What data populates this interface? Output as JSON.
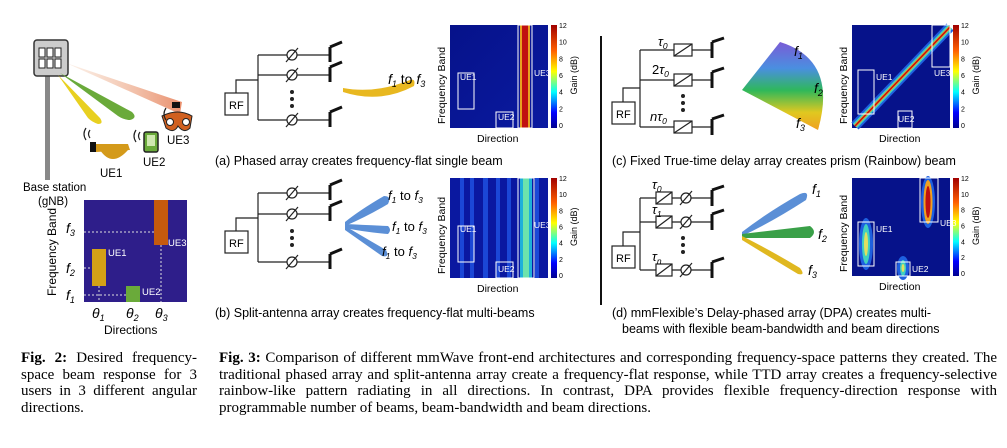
{
  "fig2": {
    "base_station": "Base station",
    "gnb": "(gNB)",
    "ue1": "UE1",
    "ue2": "UE2",
    "ue3": "UE3",
    "ylabel": "Frequency Band",
    "xlabel": "Directions",
    "f1": "f1",
    "f2": "f2",
    "f3": "f3",
    "t1": "θ1",
    "t2": "θ2",
    "t3": "θ3",
    "caption_label": "Fig.  2:",
    "caption_text": "Desired frequency-space beam response for 3 users in 3 different angular directions."
  },
  "fig3": {
    "rf": "RF",
    "f1_to_f3": "f1 to f3",
    "f1": "f1",
    "f2": "f2",
    "f3": "f3",
    "tau0": "τ0",
    "tau1": "τ1",
    "taun": "τn",
    "two_tau0": "2τ0",
    "n_tau0": "nτ0",
    "heat_ylabel": "Frequency Band",
    "heat_xlabel": "Direction",
    "gain_label": "Gain (dB)",
    "ticks": [
      "12",
      "10",
      "8",
      "6",
      "4",
      "2",
      "0"
    ],
    "ue1": "UE1",
    "ue2": "UE2",
    "ue3": "UE3",
    "sub_a": "(a) Phased array creates frequency-flat single beam",
    "sub_b": "(b) Split-antenna array creates frequency-flat multi-beams",
    "sub_c": "(c) Fixed True-time delay array creates prism (Rainbow) beam",
    "sub_d1": "(d) mmFlexible’s Delay-phased array (DPA) creates multi-",
    "sub_d2": "beams with flexible beam-bandwidth and beam directions",
    "caption_label": "Fig. 3:",
    "caption_text": "Comparison of different mmWave front-end architectures and corresponding frequency-space patterns they created. The traditional phased array and split-antenna array create a frequency-flat response, while TTD array creates a frequency-selective rainbow-like pattern radiating in all directions. In contrast, DPA provides flexible frequency-direction response with programmable number of beams, beam-bandwidth and beam directions."
  },
  "colors": {
    "navy": "#2e1e8a",
    "orange": "#c55a0e",
    "gold": "#d4a017",
    "green": "#6aaa3a",
    "beam_blue": "#5b8fd6"
  }
}
